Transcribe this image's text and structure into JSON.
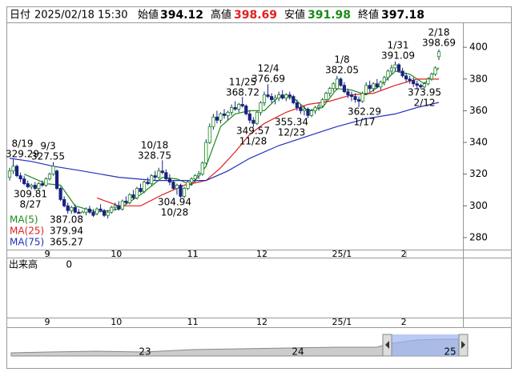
{
  "header": {
    "date_label": "日付",
    "datetime": "2025/02/18 15:30",
    "open_label": "始値",
    "open": 394.12,
    "high_label": "高値",
    "high": 398.69,
    "low_label": "安値",
    "low": 391.98,
    "close_label": "終値",
    "close": 397.18
  },
  "chart_data": {
    "type": "candlestick",
    "categories": [
      null,
      null,
      null,
      null,
      null,
      null,
      null,
      null,
      null,
      null,
      null,
      "9",
      null,
      null,
      null,
      null,
      null,
      null,
      null,
      null,
      null,
      null,
      null,
      null,
      null,
      null,
      null,
      null,
      null,
      null,
      "10",
      null,
      null,
      null,
      null,
      null,
      null,
      null,
      null,
      null,
      null,
      null,
      null,
      null,
      null,
      null,
      null,
      null,
      null,
      null,
      null,
      "11",
      null,
      null,
      null,
      null,
      null,
      null,
      null,
      null,
      null,
      null,
      null,
      null,
      null,
      null,
      null,
      null,
      null,
      null,
      "12",
      null,
      null,
      null,
      null,
      null,
      null,
      null,
      null,
      null,
      null,
      null,
      null,
      null,
      null,
      null,
      null,
      null,
      null,
      null,
      null,
      null,
      "25/1",
      null,
      null,
      null,
      null,
      null,
      null,
      null,
      null,
      null,
      null,
      null,
      null,
      null,
      null,
      null,
      null,
      "2",
      null,
      null,
      null,
      null,
      null,
      null,
      null,
      null,
      null
    ],
    "series": [
      {
        "name": "OHLC",
        "values": [
          [
            318,
            324,
            316,
            322
          ],
          [
            322,
            329.29,
            320,
            325
          ],
          [
            325,
            326,
            318,
            319
          ],
          [
            319,
            321,
            315,
            317
          ],
          [
            317,
            319,
            313,
            314
          ],
          [
            314,
            316,
            311,
            312
          ],
          [
            312,
            314,
            310.5,
            313
          ],
          [
            313,
            315,
            309.81,
            311
          ],
          [
            311,
            315,
            310,
            314
          ],
          [
            314,
            316,
            312,
            313
          ],
          [
            313,
            318,
            312,
            317
          ],
          [
            317,
            321,
            316,
            320
          ],
          [
            320,
            327.55,
            319,
            325
          ],
          [
            322,
            323,
            310,
            311
          ],
          [
            311,
            312,
            303,
            304
          ],
          [
            304,
            306,
            299,
            300
          ],
          [
            300,
            302,
            295,
            297
          ],
          [
            297,
            300,
            294,
            299
          ],
          [
            299,
            301,
            295,
            296
          ],
          [
            296,
            298,
            292,
            294
          ],
          [
            294,
            297,
            292,
            296
          ],
          [
            296,
            299,
            294,
            298
          ],
          [
            298,
            300,
            295,
            296
          ],
          [
            296,
            298,
            293,
            294
          ],
          [
            295,
            299,
            294,
            298
          ],
          [
            298,
            301,
            296,
            297
          ],
          [
            297,
            298,
            293,
            294
          ],
          [
            294,
            297,
            292,
            296
          ],
          [
            296,
            300,
            295,
            299
          ],
          [
            299,
            302,
            297,
            300
          ],
          [
            300,
            303,
            297,
            298
          ],
          [
            298,
            304,
            297,
            303
          ],
          [
            303,
            306,
            301,
            302
          ],
          [
            302,
            308,
            301,
            307
          ],
          [
            307,
            310,
            304,
            305
          ],
          [
            305,
            312,
            304,
            311
          ],
          [
            311,
            314,
            308,
            309
          ],
          [
            309,
            316,
            308,
            315
          ],
          [
            315,
            318,
            313,
            314
          ],
          [
            314,
            320,
            313,
            319
          ],
          [
            319,
            322,
            316,
            318
          ],
          [
            318,
            324,
            317,
            322
          ],
          [
            322,
            328.75,
            320,
            321
          ],
          [
            321,
            323,
            316,
            317
          ],
          [
            317,
            320,
            313,
            315
          ],
          [
            315,
            316,
            310,
            311
          ],
          [
            311,
            314,
            307,
            313
          ],
          [
            313,
            314,
            304.94,
            306
          ],
          [
            306,
            312,
            305,
            311
          ],
          [
            311,
            316,
            310,
            315
          ],
          [
            315,
            318,
            313,
            317
          ],
          [
            317,
            320,
            315,
            319
          ],
          [
            319,
            322,
            317,
            320
          ],
          [
            320,
            328,
            319,
            327
          ],
          [
            327,
            342,
            326,
            340
          ],
          [
            340,
            352,
            339,
            350
          ],
          [
            350,
            358,
            348,
            356
          ],
          [
            356,
            360,
            352,
            354
          ],
          [
            354,
            359,
            352,
            358
          ],
          [
            358,
            361,
            355,
            357
          ],
          [
            357,
            360,
            354,
            359
          ],
          [
            359,
            364,
            357,
            362
          ],
          [
            362,
            366,
            360,
            361
          ],
          [
            361,
            365,
            359,
            364
          ],
          [
            364,
            368.72,
            362,
            363
          ],
          [
            363,
            364,
            357,
            358
          ],
          [
            358,
            360,
            352,
            354
          ],
          [
            354,
            356,
            349.57,
            352
          ],
          [
            352,
            360,
            351,
            359
          ],
          [
            359,
            366,
            357,
            365
          ],
          [
            365,
            372,
            363,
            370
          ],
          [
            370,
            376.69,
            368,
            369
          ],
          [
            369,
            371,
            365,
            367
          ],
          [
            367,
            370,
            364,
            368
          ],
          [
            368,
            372,
            366,
            370
          ],
          [
            370,
            373,
            367,
            368
          ],
          [
            368,
            371,
            366,
            370
          ],
          [
            370,
            372,
            367,
            369
          ],
          [
            369,
            370,
            364,
            365
          ],
          [
            365,
            367,
            360,
            362
          ],
          [
            362,
            364,
            358,
            360
          ],
          [
            360,
            363,
            357,
            361
          ],
          [
            361,
            362,
            355.34,
            357
          ],
          [
            357,
            361,
            356,
            360
          ],
          [
            360,
            363,
            358,
            362
          ],
          [
            362,
            365,
            360,
            363
          ],
          [
            363,
            368,
            362,
            367
          ],
          [
            367,
            372,
            366,
            371
          ],
          [
            371,
            375,
            369,
            374
          ],
          [
            374,
            378,
            372,
            377
          ],
          [
            374,
            382.05,
            373,
            380
          ],
          [
            380,
            381,
            375,
            376
          ],
          [
            376,
            378,
            371,
            372
          ],
          [
            372,
            374,
            368,
            370
          ],
          [
            370,
            372,
            366,
            369
          ],
          [
            369,
            371,
            365,
            367
          ],
          [
            367,
            369,
            362.29,
            366
          ],
          [
            366,
            372,
            365,
            371
          ],
          [
            371,
            378,
            370,
            376
          ],
          [
            376,
            379,
            372,
            374
          ],
          [
            374,
            378,
            372,
            377
          ],
          [
            377,
            380,
            374,
            375
          ],
          [
            375,
            379,
            373,
            378
          ],
          [
            378,
            382,
            376,
            381
          ],
          [
            381,
            386,
            379,
            385
          ],
          [
            385,
            389,
            383,
            387
          ],
          [
            387,
            391.09,
            385,
            389
          ],
          [
            389,
            390,
            384,
            385
          ],
          [
            385,
            387,
            381,
            382
          ],
          [
            382,
            384,
            378,
            380
          ],
          [
            380,
            382,
            377,
            379
          ],
          [
            379,
            381,
            375,
            377
          ],
          [
            377,
            379,
            374,
            376
          ],
          [
            376,
            377,
            373.95,
            375
          ],
          [
            375,
            378,
            374,
            377
          ],
          [
            377,
            381,
            376,
            380
          ],
          [
            380,
            384,
            379,
            383
          ],
          [
            383,
            388,
            382,
            387
          ],
          [
            394.12,
            398.69,
            391.98,
            397.18
          ]
        ]
      },
      {
        "name": "MA(5)",
        "color": "#1a8a1a",
        "latest": 387.08,
        "x": [
          4,
          10,
          14,
          18,
          24,
          30,
          36,
          42,
          46,
          50,
          54,
          58,
          62,
          66,
          70,
          74,
          78,
          82,
          86,
          90,
          94,
          98,
          102,
          106,
          110,
          114,
          118
        ],
        "values": [
          320,
          314,
          313,
          300,
          296,
          298,
          307,
          318,
          317,
          313,
          325,
          350,
          358,
          360,
          360,
          369,
          368,
          360,
          362,
          374,
          373,
          370,
          376,
          385,
          383,
          377,
          387.08
        ]
      },
      {
        "name": "MA(25)",
        "color": "#e02020",
        "latest": 379.94,
        "x": [
          24,
          30,
          36,
          42,
          48,
          54,
          58,
          62,
          66,
          70,
          76,
          82,
          88,
          94,
          100,
          106,
          112,
          118
        ],
        "values": [
          305,
          300,
          300,
          307,
          313,
          316,
          324,
          334,
          345,
          352,
          359,
          364,
          366,
          370,
          371,
          376,
          380,
          379.94
        ]
      },
      {
        "name": "MA(75)",
        "color": "#2030c0",
        "latest": 365.27,
        "x": [
          0,
          6,
          12,
          20,
          30,
          40,
          48,
          54,
          60,
          66,
          74,
          82,
          90,
          98,
          106,
          112,
          118
        ],
        "values": [
          330,
          328,
          325,
          322,
          318,
          316,
          316,
          316,
          322,
          330,
          338,
          344,
          350,
          355,
          358,
          362,
          365.27
        ]
      }
    ],
    "ylim": [
      272.4,
      414.7
    ],
    "yticks": [
      280,
      300,
      320,
      340,
      360,
      380,
      400
    ],
    "annotations": [
      {
        "date": "8/19",
        "price": 329.29
      },
      {
        "date": "9/3",
        "price": 327.55
      },
      {
        "date": "8/27",
        "price": 309.81
      },
      {
        "date": "10/18",
        "price": 328.75
      },
      {
        "date": "10/28",
        "price": 304.94
      },
      {
        "date": "11/25",
        "price": 368.72
      },
      {
        "date": "11/28",
        "price": 349.57
      },
      {
        "date": "12/4",
        "price": 376.69
      },
      {
        "date": "12/23",
        "price": 355.34
      },
      {
        "date": "1/8",
        "price": 382.05
      },
      {
        "date": "1/17",
        "price": 362.29
      },
      {
        "date": "1/31",
        "price": 391.09
      },
      {
        "date": "2/12",
        "price": 373.95
      },
      {
        "date": "2/18",
        "price": 398.69
      }
    ],
    "volume": {
      "label": "出来高",
      "value": 0
    },
    "navigator": {
      "labels": [
        "23",
        "24",
        "25"
      ]
    }
  }
}
